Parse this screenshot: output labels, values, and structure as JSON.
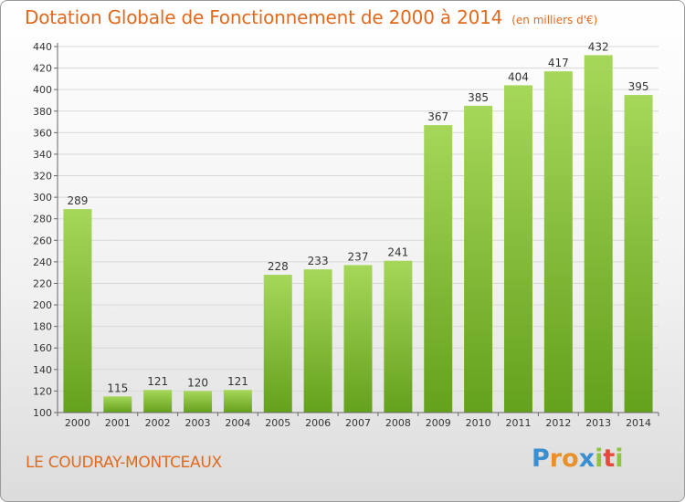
{
  "chart_data": {
    "type": "bar",
    "title": "Dotation Globale de Fonctionnement de 2000 à 2014",
    "unit_label": "(en milliers d'€)",
    "categories": [
      "2000",
      "2001",
      "2002",
      "2003",
      "2004",
      "2005",
      "2006",
      "2007",
      "2008",
      "2009",
      "2010",
      "2011",
      "2012",
      "2013",
      "2014"
    ],
    "values": [
      289,
      115,
      121,
      120,
      121,
      228,
      233,
      237,
      241,
      367,
      385,
      404,
      417,
      432,
      395
    ],
    "ylim": [
      100,
      440
    ],
    "yticks": [
      100,
      120,
      140,
      160,
      180,
      200,
      220,
      240,
      260,
      280,
      300,
      320,
      340,
      360,
      380,
      400,
      420,
      440
    ],
    "grid": true,
    "xlabel": "",
    "ylabel": "",
    "colors": {
      "bar_top": "#a6d75a",
      "bar_bottom": "#64a11c",
      "grid": "#d8d8d8",
      "text": "#333333"
    }
  },
  "footer": {
    "commune": "LE COUDRAY-MONTCEAUX",
    "logo_letters": [
      {
        "ch": "P",
        "color": "#3a8fd0"
      },
      {
        "ch": "r",
        "color": "#e8902a"
      },
      {
        "ch": "o",
        "color": "#e8902a"
      },
      {
        "ch": "x",
        "color": "#3a8fd0"
      },
      {
        "ch": "i",
        "color": "#8cc63f"
      },
      {
        "ch": "t",
        "color": "#e84a3a"
      },
      {
        "ch": "i",
        "color": "#8cc63f"
      }
    ]
  }
}
